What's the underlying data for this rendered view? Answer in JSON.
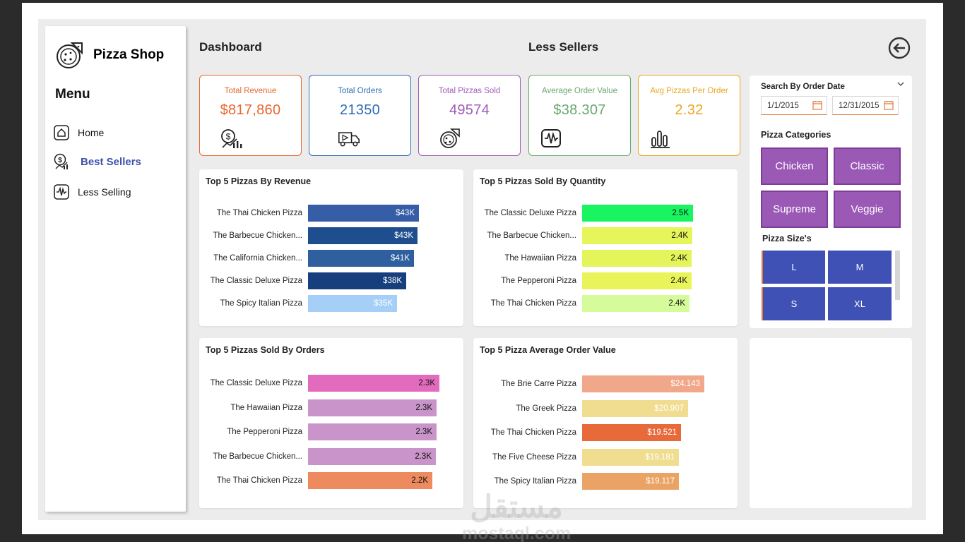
{
  "brand": {
    "title": "Pizza Shop"
  },
  "menu": {
    "title": "Menu",
    "items": [
      {
        "label": "Home",
        "icon": "home-icon"
      },
      {
        "label": "Best Sellers",
        "icon": "revenue-icon"
      },
      {
        "label": "Less Selling",
        "icon": "pulse-icon"
      }
    ]
  },
  "header": {
    "dashboard": "Dashboard",
    "page_title": "Less Sellers"
  },
  "kpis": [
    {
      "label": "Total Revenue",
      "value": "$817,860",
      "color": "#e8672e"
    },
    {
      "label": "Total Orders",
      "value": "21350",
      "color": "#2e6bb5"
    },
    {
      "label": "Total Pizzas Sold",
      "value": "49574",
      "color": "#a05ab7"
    },
    {
      "label": "Average Order Value",
      "value": "$38.307",
      "color": "#6aa86f"
    },
    {
      "label": "Avg Pizzas Per Order",
      "value": "2.32",
      "color": "#e9a621"
    }
  ],
  "charts": {
    "revenue": {
      "title": "Top 5 Pizzas By Revenue",
      "max": 43,
      "rows": [
        {
          "label": "The Thai Chicken Pizza",
          "value": 43.4,
          "display": "$43K",
          "color": "#355ea6",
          "text": "#ffffff"
        },
        {
          "label": "The Barbecue Chicken...",
          "value": 42.8,
          "display": "$43K",
          "color": "#1f4e8f",
          "text": "#ffffff"
        },
        {
          "label": "The California Chicken...",
          "value": 41.4,
          "display": "$41K",
          "color": "#2f5f9e",
          "text": "#ffffff"
        },
        {
          "label": "The Classic Deluxe Pizza",
          "value": 38.2,
          "display": "$38K",
          "color": "#173f7d",
          "text": "#ffffff"
        },
        {
          "label": "The Spicy Italian Pizza",
          "value": 34.8,
          "display": "$35K",
          "color": "#a6cff8",
          "text": "#ffffff"
        }
      ]
    },
    "quantity": {
      "title": "Top 5 Pizzas Sold By Quantity",
      "max": 2.5,
      "rows": [
        {
          "label": "The Classic Deluxe Pizza",
          "value": 2.45,
          "display": "2.5K",
          "color": "#18f561",
          "text": "#111111"
        },
        {
          "label": "The Barbecue Chicken...",
          "value": 2.43,
          "display": "2.4K",
          "color": "#e5f55a",
          "text": "#111111"
        },
        {
          "label": "The Hawaiian Pizza",
          "value": 2.42,
          "display": "2.4K",
          "color": "#e3f55a",
          "text": "#111111"
        },
        {
          "label": "The Pepperoni Pizza",
          "value": 2.42,
          "display": "2.4K",
          "color": "#e9f45a",
          "text": "#111111"
        },
        {
          "label": "The Thai Chicken Pizza",
          "value": 2.37,
          "display": "2.4K",
          "color": "#d6fb9a",
          "text": "#111111"
        }
      ]
    },
    "orders": {
      "title": "Top 5 Pizzas Sold By Orders",
      "max": 2.33,
      "rows": [
        {
          "label": "The Classic Deluxe Pizza",
          "value": 2.33,
          "display": "2.3K",
          "color": "#e36bbd",
          "text": "#111111"
        },
        {
          "label": "The Hawaiian Pizza",
          "value": 2.28,
          "display": "2.3K",
          "color": "#c994c9",
          "text": "#111111"
        },
        {
          "label": "The Pepperoni Pizza",
          "value": 2.28,
          "display": "2.3K",
          "color": "#c994c9",
          "text": "#111111"
        },
        {
          "label": "The Barbecue Chicken...",
          "value": 2.27,
          "display": "2.3K",
          "color": "#c994c9",
          "text": "#111111"
        },
        {
          "label": "The Thai Chicken Pizza",
          "value": 2.2,
          "display": "2.2K",
          "color": "#ed8a5e",
          "text": "#111111"
        }
      ]
    },
    "aov": {
      "title": "Top 5 Pizza Average Order Value",
      "max": 24.143,
      "rows": [
        {
          "label": "The Brie Carre Pizza",
          "value": 24.143,
          "display": "$24.143",
          "color": "#f0a78a",
          "text": "#ffffff"
        },
        {
          "label": "The Greek Pizza",
          "value": 20.907,
          "display": "$20.907",
          "color": "#f0dd90",
          "text": "#ffffff"
        },
        {
          "label": "The Thai Chicken Pizza",
          "value": 19.521,
          "display": "$19.521",
          "color": "#e8693a",
          "text": "#ffffff"
        },
        {
          "label": "The Five Cheese Pizza",
          "value": 19.181,
          "display": "$19.181",
          "color": "#f0dd90",
          "text": "#ffffff"
        },
        {
          "label": "The Spicy Italian Pizza",
          "value": 19.117,
          "display": "$19.117",
          "color": "#eba365",
          "text": "#ffffff"
        }
      ]
    }
  },
  "filters": {
    "date_title": "Search By Order Date",
    "date_start": "1/1/2015",
    "date_end": "12/31/2015",
    "categories_title": "Pizza Categories",
    "categories": [
      "Chicken",
      "Classic",
      "Supreme",
      "Veggie"
    ],
    "sizes_title": "Pizza Size's",
    "sizes": [
      "L",
      "M",
      "S",
      "XL"
    ]
  },
  "watermark": {
    "arabic": "مستقل",
    "latin": "mostaql.com"
  }
}
